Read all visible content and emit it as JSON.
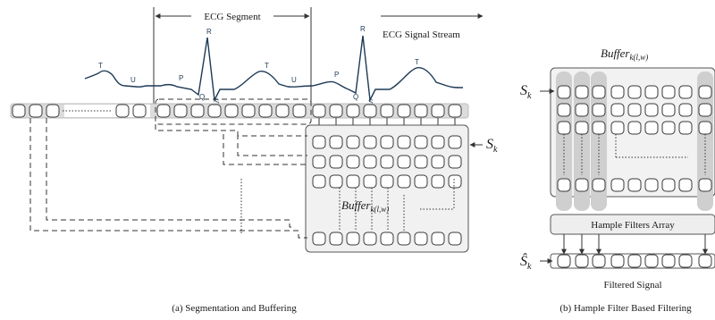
{
  "panel_a": {
    "caption": "(a) Segmentation and Buffering",
    "ecg_segment_label": "ECG Segment",
    "stream_label": "ECG Signal Stream",
    "wave_labels": {
      "t": "T",
      "u": "U",
      "p": "P",
      "q": "Q",
      "r": "R",
      "s": "S"
    },
    "s_k_symbol": "S",
    "s_k_sub": "k",
    "buffer_symbol": "Buffer",
    "buffer_sub": "k(l,w)"
  },
  "panel_b": {
    "caption": "(b) Hample Filter Based Filtering",
    "buffer_symbol": "Buffer",
    "buffer_sub": "k(l,w)",
    "s_k_symbol": "S",
    "s_k_sub": "k",
    "filters_label": "Hample Filters Array",
    "s_hat_symbol": "Ŝ",
    "s_hat_sub": "k",
    "filtered_label": "Filtered Signal"
  }
}
